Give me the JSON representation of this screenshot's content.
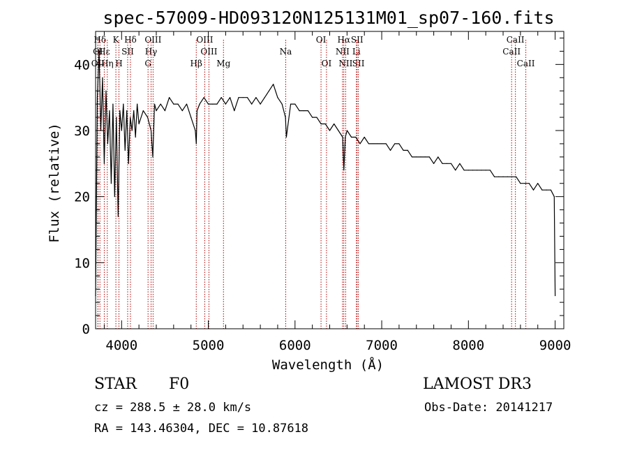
{
  "chart_data": {
    "type": "line",
    "title": "spec-57009-HD093120N125131M01_sp07-160.fits",
    "xlabel": "Wavelength (Å)",
    "ylabel": "Flux (relative)",
    "xlim": [
      3700,
      9100
    ],
    "ylim": [
      0,
      45
    ],
    "xticks": [
      4000,
      5000,
      6000,
      7000,
      8000,
      9000
    ],
    "yticks": [
      0,
      10,
      20,
      30,
      40
    ],
    "series": [
      {
        "name": "spectrum",
        "x": [
          3700,
          3720,
          3740,
          3760,
          3780,
          3800,
          3820,
          3840,
          3860,
          3880,
          3900,
          3920,
          3940,
          3960,
          3980,
          4000,
          4020,
          4040,
          4060,
          4080,
          4100,
          4120,
          4140,
          4160,
          4180,
          4200,
          4250,
          4300,
          4340,
          4360,
          4380,
          4400,
          4450,
          4500,
          4550,
          4600,
          4650,
          4700,
          4750,
          4800,
          4850,
          4861,
          4870,
          4900,
          4950,
          5000,
          5050,
          5100,
          5150,
          5200,
          5250,
          5300,
          5350,
          5400,
          5450,
          5500,
          5550,
          5600,
          5650,
          5700,
          5750,
          5800,
          5850,
          5890,
          5900,
          5950,
          6000,
          6050,
          6100,
          6150,
          6200,
          6250,
          6300,
          6350,
          6400,
          6450,
          6500,
          6550,
          6563,
          6580,
          6600,
          6650,
          6700,
          6750,
          6800,
          6850,
          6900,
          6950,
          7000,
          7050,
          7100,
          7150,
          7200,
          7250,
          7300,
          7350,
          7400,
          7450,
          7500,
          7550,
          7600,
          7650,
          7700,
          7750,
          7800,
          7850,
          7900,
          7950,
          8000,
          8050,
          8100,
          8150,
          8200,
          8250,
          8300,
          8350,
          8400,
          8450,
          8500,
          8550,
          8600,
          8650,
          8700,
          8750,
          8800,
          8850,
          8900,
          8950,
          8990,
          9000
        ],
        "y": [
          5,
          35,
          42,
          30,
          38,
          25,
          36,
          28,
          33,
          22,
          34,
          20,
          32,
          17,
          33,
          30,
          34,
          27,
          33,
          25,
          32,
          30,
          33,
          29,
          34,
          31,
          33,
          32,
          30,
          26,
          34,
          33,
          34,
          33,
          35,
          34,
          34,
          33,
          34,
          32,
          30,
          28,
          33,
          34,
          35,
          34,
          34,
          34,
          35,
          34,
          35,
          33,
          35,
          35,
          35,
          34,
          35,
          34,
          35,
          36,
          37,
          35,
          34,
          32,
          29,
          34,
          34,
          33,
          33,
          33,
          32,
          32,
          31,
          31,
          30,
          31,
          30,
          29,
          24,
          29,
          30,
          29,
          29,
          28,
          29,
          28,
          28,
          28,
          28,
          28,
          27,
          28,
          28,
          27,
          27,
          26,
          26,
          26,
          26,
          26,
          25,
          26,
          25,
          25,
          25,
          24,
          25,
          24,
          24,
          24,
          24,
          24,
          24,
          24,
          23,
          23,
          23,
          23,
          23,
          23,
          22,
          22,
          22,
          21,
          22,
          21,
          21,
          21,
          20,
          5
        ]
      }
    ],
    "reference_lines": [
      {
        "label": "Hδ",
        "x": 3750,
        "row": 0
      },
      {
        "label": "K",
        "x": 3934,
        "row": 0
      },
      {
        "label": "Hδ",
        "x": 4102,
        "row": 0
      },
      {
        "label": "OIII",
        "x": 4363,
        "row": 0
      },
      {
        "label": "OIII",
        "x": 4959,
        "row": 0
      },
      {
        "label": "OI",
        "x": 6300,
        "row": 0
      },
      {
        "label": "Hα",
        "x": 6563,
        "row": 0
      },
      {
        "label": "SII",
        "x": 6716,
        "row": 0
      },
      {
        "label": "CaII",
        "x": 8542,
        "row": 0
      },
      {
        "label": "OI",
        "x": 3727,
        "row": 1
      },
      {
        "label": "Hε",
        "x": 3800,
        "row": 1
      },
      {
        "label": "SII",
        "x": 4070,
        "row": 1
      },
      {
        "label": "Hγ",
        "x": 4340,
        "row": 1
      },
      {
        "label": "OIII",
        "x": 5007,
        "row": 1
      },
      {
        "label": "Na",
        "x": 5893,
        "row": 1
      },
      {
        "label": "NII",
        "x": 6548,
        "row": 1
      },
      {
        "label": "Li",
        "x": 6708,
        "row": 1
      },
      {
        "label": "CaII",
        "x": 8498,
        "row": 1
      },
      {
        "label": "OII",
        "x": 3727,
        "row": 2
      },
      {
        "label": "Hη",
        "x": 3835,
        "row": 2
      },
      {
        "label": "H",
        "x": 3969,
        "row": 2
      },
      {
        "label": "G",
        "x": 4305,
        "row": 2
      },
      {
        "label": "Hβ",
        "x": 4861,
        "row": 2
      },
      {
        "label": "Mg",
        "x": 5175,
        "row": 2
      },
      {
        "label": "OI",
        "x": 6363,
        "row": 2
      },
      {
        "label": "NII",
        "x": 6584,
        "row": 2
      },
      {
        "label": "SII",
        "x": 6731,
        "row": 2
      },
      {
        "label": "CaII",
        "x": 8662,
        "row": 2
      }
    ]
  },
  "info": {
    "class": "STAR",
    "subclass": "F0",
    "survey": "LAMOST DR3",
    "cz": "cz = 288.5 ± 28.0 km/s",
    "obs_date": "Obs-Date: 20141217",
    "coords": "RA = 143.46304, DEC =  10.87618"
  },
  "colors": {
    "axis": "#000000",
    "spectrum": "#000000",
    "reference_line": "#b00000"
  }
}
